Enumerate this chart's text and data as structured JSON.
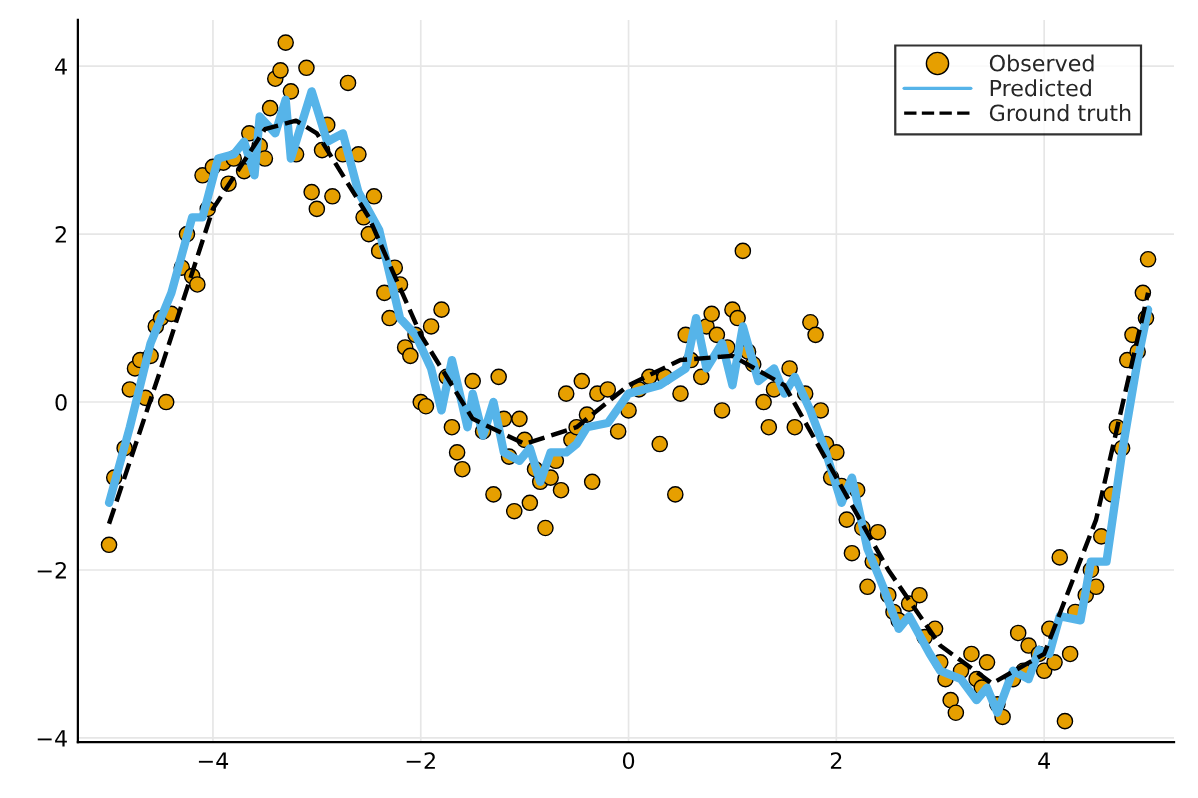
{
  "chart_data": {
    "type": "scatter",
    "xlim": [
      -5.3,
      5.25
    ],
    "ylim": [
      -4.05,
      4.55
    ],
    "xticks": [
      -4,
      -2,
      0,
      2,
      4
    ],
    "yticks": [
      -4,
      -2,
      0,
      2,
      4
    ],
    "grid": true,
    "legend": "top right",
    "series": [
      {
        "name": "Observed",
        "color": "#e69f00",
        "marker": "circle",
        "x": [
          -5.0,
          -4.95,
          -4.85,
          -4.8,
          -4.75,
          -4.7,
          -4.65,
          -4.6,
          -4.55,
          -4.5,
          -4.45,
          -4.4,
          -4.3,
          -4.25,
          -4.2,
          -4.15,
          -4.1,
          -4.05,
          -4.0,
          -3.9,
          -3.85,
          -3.8,
          -3.7,
          -3.65,
          -3.55,
          -3.5,
          -3.45,
          -3.4,
          -3.35,
          -3.3,
          -3.25,
          -3.2,
          -3.1,
          -3.05,
          -3.0,
          -2.95,
          -2.9,
          -2.85,
          -2.75,
          -2.7,
          -2.6,
          -2.55,
          -2.5,
          -2.45,
          -2.4,
          -2.35,
          -2.3,
          -2.25,
          -2.2,
          -2.15,
          -2.1,
          -2.05,
          -2.0,
          -1.95,
          -1.9,
          -1.8,
          -1.75,
          -1.7,
          -1.65,
          -1.6,
          -1.5,
          -1.4,
          -1.3,
          -1.25,
          -1.2,
          -1.15,
          -1.1,
          -1.05,
          -1.0,
          -0.95,
          -0.9,
          -0.85,
          -0.8,
          -0.75,
          -0.7,
          -0.65,
          -0.6,
          -0.55,
          -0.5,
          -0.45,
          -0.4,
          -0.35,
          -0.3,
          -0.2,
          -0.1,
          0.0,
          0.1,
          0.2,
          0.3,
          0.35,
          0.45,
          0.5,
          0.55,
          0.6,
          0.7,
          0.75,
          0.8,
          0.85,
          0.9,
          0.95,
          1.0,
          1.05,
          1.1,
          1.15,
          1.2,
          1.3,
          1.35,
          1.4,
          1.55,
          1.6,
          1.7,
          1.75,
          1.8,
          1.85,
          1.9,
          1.95,
          2.0,
          2.05,
          2.1,
          2.15,
          2.2,
          2.25,
          2.3,
          2.35,
          2.4,
          2.5,
          2.55,
          2.6,
          2.7,
          2.8,
          2.85,
          2.95,
          3.0,
          3.05,
          3.1,
          3.15,
          3.2,
          3.3,
          3.35,
          3.4,
          3.45,
          3.55,
          3.6,
          3.7,
          3.75,
          3.8,
          3.85,
          3.95,
          4.0,
          4.05,
          4.1,
          4.15,
          4.2,
          4.25,
          4.3,
          4.4,
          4.45,
          4.5,
          4.55,
          4.65,
          4.7,
          4.75,
          4.8,
          4.85,
          4.9,
          4.95,
          5.0,
          4.98
        ],
        "values": [
          -1.7,
          -0.9,
          -0.55,
          0.15,
          0.4,
          0.5,
          0.05,
          0.55,
          0.9,
          1.0,
          0.0,
          1.05,
          1.6,
          2.0,
          1.5,
          1.4,
          2.7,
          2.3,
          2.8,
          2.85,
          2.6,
          2.9,
          2.75,
          3.2,
          3.05,
          2.9,
          3.5,
          3.85,
          3.95,
          4.28,
          3.7,
          2.95,
          3.98,
          2.5,
          2.3,
          3.0,
          3.3,
          2.45,
          2.95,
          3.8,
          2.95,
          2.2,
          2.0,
          2.45,
          1.8,
          1.3,
          1.0,
          1.6,
          1.4,
          0.65,
          0.55,
          0.8,
          0.0,
          -0.05,
          0.9,
          1.1,
          0.3,
          -0.3,
          -0.6,
          -0.8,
          0.25,
          -0.35,
          -1.1,
          0.3,
          -0.2,
          -0.65,
          -1.3,
          -0.2,
          -0.45,
          -1.2,
          -0.8,
          -0.95,
          -1.5,
          -0.9,
          -0.7,
          -1.05,
          0.1,
          -0.45,
          -0.3,
          0.25,
          -0.15,
          -0.95,
          0.1,
          0.15,
          -0.35,
          -0.1,
          0.15,
          0.3,
          -0.5,
          0.3,
          -1.1,
          0.1,
          0.8,
          0.5,
          0.3,
          0.9,
          1.05,
          0.8,
          -0.1,
          0.65,
          1.1,
          1.0,
          1.8,
          0.6,
          0.45,
          0.0,
          -0.3,
          0.15,
          0.4,
          -0.3,
          0.1,
          0.95,
          0.8,
          -0.1,
          -0.5,
          -0.9,
          -0.6,
          -1.0,
          -1.4,
          -1.8,
          -1.05,
          -1.5,
          -2.2,
          -1.9,
          -1.55,
          -2.3,
          -2.5,
          -2.6,
          -2.4,
          -2.3,
          -2.8,
          -2.7,
          -3.1,
          -3.3,
          -3.55,
          -3.7,
          -3.2,
          -3.0,
          -3.3,
          -3.4,
          -3.1,
          -3.6,
          -3.75,
          -3.3,
          -2.75,
          -3.2,
          -2.9,
          -3.0,
          -3.2,
          -2.7,
          -3.1,
          -1.85,
          -3.8,
          -3.0,
          -2.5,
          -2.3,
          -2.0,
          -2.2,
          -1.6,
          -1.1,
          -0.3,
          -0.55,
          0.5,
          0.8,
          0.6,
          1.3,
          1.7,
          1.0
        ]
      },
      {
        "name": "Predicted",
        "type": "line",
        "color": "#56b4e9",
        "line_style": "solid",
        "x": [
          -5,
          -4.8,
          -4.6,
          -4.4,
          -4.2,
          -4.1,
          -3.95,
          -3.8,
          -3.7,
          -3.6,
          -3.55,
          -3.4,
          -3.3,
          -3.25,
          -3.05,
          -2.9,
          -2.75,
          -2.6,
          -2.4,
          -2.2,
          -2.05,
          -1.9,
          -1.8,
          -1.7,
          -1.55,
          -1.5,
          -1.4,
          -1.3,
          -1.2,
          -1.05,
          -0.95,
          -0.85,
          -0.75,
          -0.6,
          -0.5,
          -0.4,
          -0.2,
          0.0,
          0.3,
          0.55,
          0.65,
          0.75,
          0.9,
          1.0,
          1.1,
          1.25,
          1.4,
          1.5,
          1.6,
          1.75,
          1.9,
          2.05,
          2.15,
          2.3,
          2.45,
          2.6,
          2.7,
          2.9,
          3.0,
          3.2,
          3.35,
          3.45,
          3.55,
          3.7,
          3.85,
          3.95,
          4.05,
          4.15,
          4.35,
          4.45,
          4.6,
          4.75,
          4.9,
          5.0
        ],
        "values": [
          -1.2,
          -0.3,
          0.7,
          1.3,
          2.2,
          2.2,
          2.9,
          2.95,
          3.1,
          2.7,
          3.4,
          3.2,
          3.6,
          2.9,
          3.7,
          3.1,
          3.2,
          2.5,
          2.05,
          1.0,
          0.8,
          0.4,
          -0.1,
          0.5,
          -0.3,
          0.1,
          -0.4,
          0.0,
          -0.6,
          -0.7,
          -0.55,
          -0.95,
          -0.6,
          -0.6,
          -0.5,
          -0.3,
          -0.25,
          0.1,
          0.2,
          0.4,
          1.0,
          0.4,
          0.7,
          0.2,
          0.9,
          0.25,
          0.4,
          0.1,
          0.3,
          -0.1,
          -0.6,
          -1.2,
          -0.9,
          -1.75,
          -2.2,
          -2.7,
          -2.55,
          -3.0,
          -3.2,
          -3.3,
          -3.55,
          -3.4,
          -3.7,
          -3.2,
          -3.3,
          -2.95,
          -3.0,
          -2.55,
          -2.6,
          -1.9,
          -1.9,
          -0.6,
          0.5,
          1.1
        ]
      },
      {
        "name": "Ground truth",
        "type": "line",
        "color": "#000000",
        "line_style": "dashed",
        "x": [
          -5,
          -4.5,
          -4,
          -3.5,
          -3.2,
          -3,
          -2.5,
          -2,
          -1.5,
          -1,
          -0.5,
          0,
          0.5,
          1,
          1.5,
          2,
          2.5,
          3,
          3.5,
          4,
          4.5,
          5
        ],
        "values": [
          -1.45,
          0.4,
          2.3,
          3.25,
          3.35,
          3.2,
          2.2,
          0.8,
          -0.2,
          -0.5,
          -0.3,
          0.2,
          0.5,
          0.55,
          0.2,
          -0.9,
          -2.0,
          -2.9,
          -3.35,
          -3.0,
          -1.4,
          1.3
        ]
      }
    ]
  }
}
